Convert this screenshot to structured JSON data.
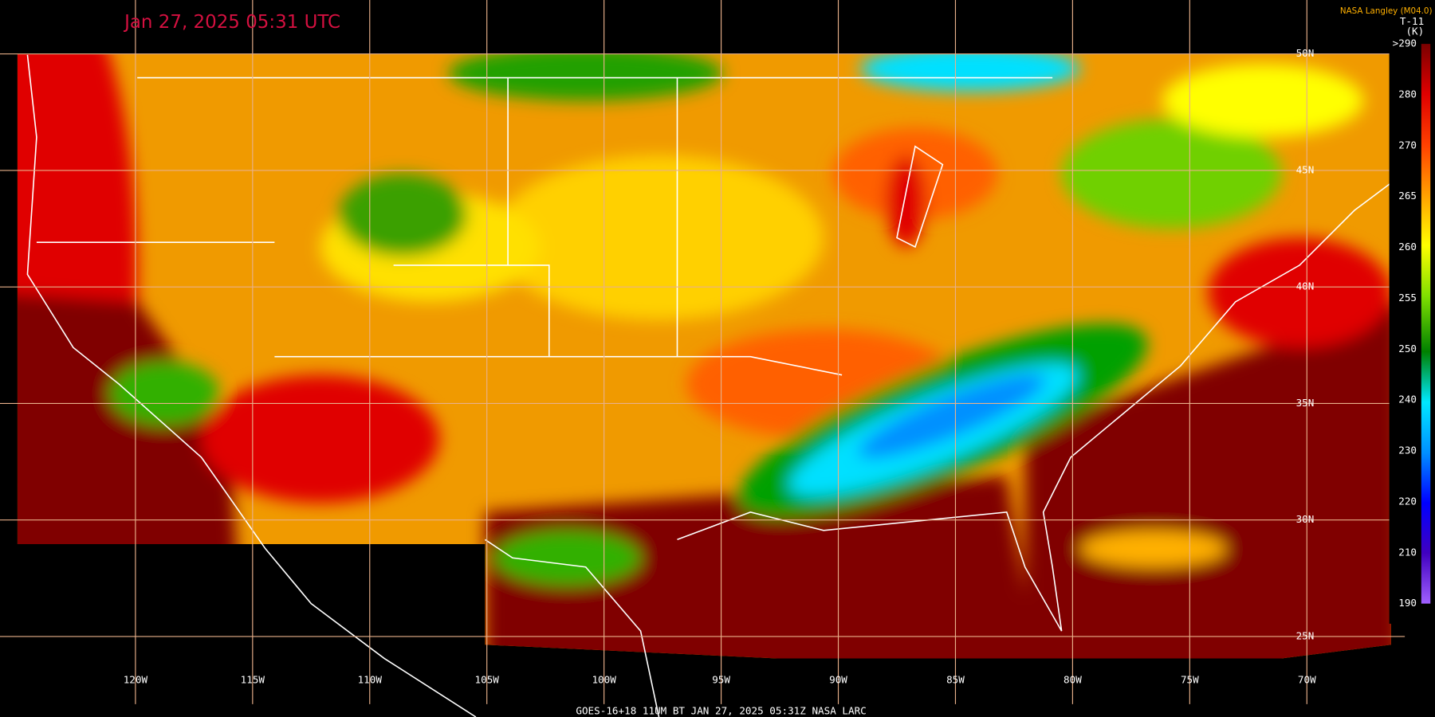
{
  "header": {
    "timestamp": "Jan 27, 2025 05:31 UTC",
    "source": "NASA Langley (M04.0)",
    "footer": "GOES-16+18  11UM BT  JAN 27, 2025 05:31Z  NASA LARC"
  },
  "map": {
    "longitude_labels": [
      "120W",
      "115W",
      "110W",
      "105W",
      "100W",
      "95W",
      "90W",
      "85W",
      "80W",
      "75W",
      "70W"
    ],
    "latitude_labels": [
      "50N",
      "45N",
      "40N",
      "35N",
      "30N",
      "25N"
    ]
  },
  "colorbar": {
    "variable": "T-11",
    "unit": "(K)",
    "labels": [
      ">290",
      "280",
      "270",
      "265",
      "260",
      "255",
      "250",
      "240",
      "230",
      "220",
      "210",
      "190"
    ]
  }
}
